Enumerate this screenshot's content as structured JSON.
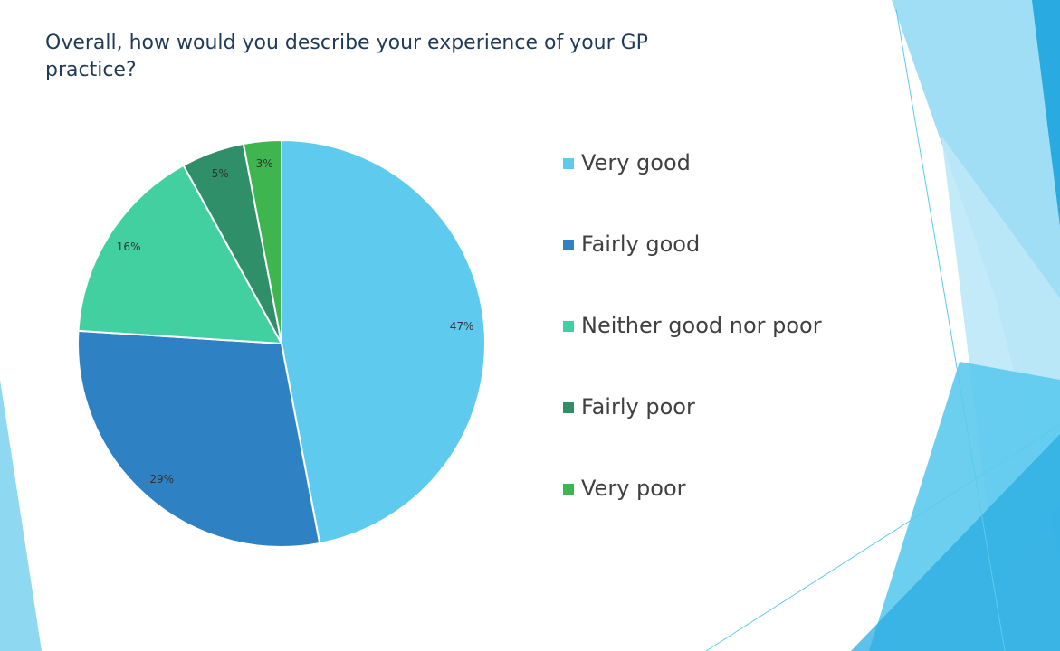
{
  "slide": {
    "title": "Overall, how would you describe your experience of your GP practice?"
  },
  "chart_data": {
    "type": "pie",
    "categories": [
      "Very good",
      "Fairly good",
      "Neither good nor poor",
      "Fairly poor",
      "Very poor"
    ],
    "values": [
      47,
      29,
      16,
      5,
      3
    ],
    "labels": [
      "47%",
      "29%",
      "16%",
      "5%",
      "3%"
    ],
    "colors": [
      "#5ecbee",
      "#2e82c4",
      "#43d0a0",
      "#2e8f68",
      "#3fb54f"
    ],
    "legend_position": "right"
  },
  "theme": {
    "decor_colors": [
      "#5ccaee",
      "#29abe2",
      "#8ed8f2",
      "#bde8f7"
    ]
  }
}
